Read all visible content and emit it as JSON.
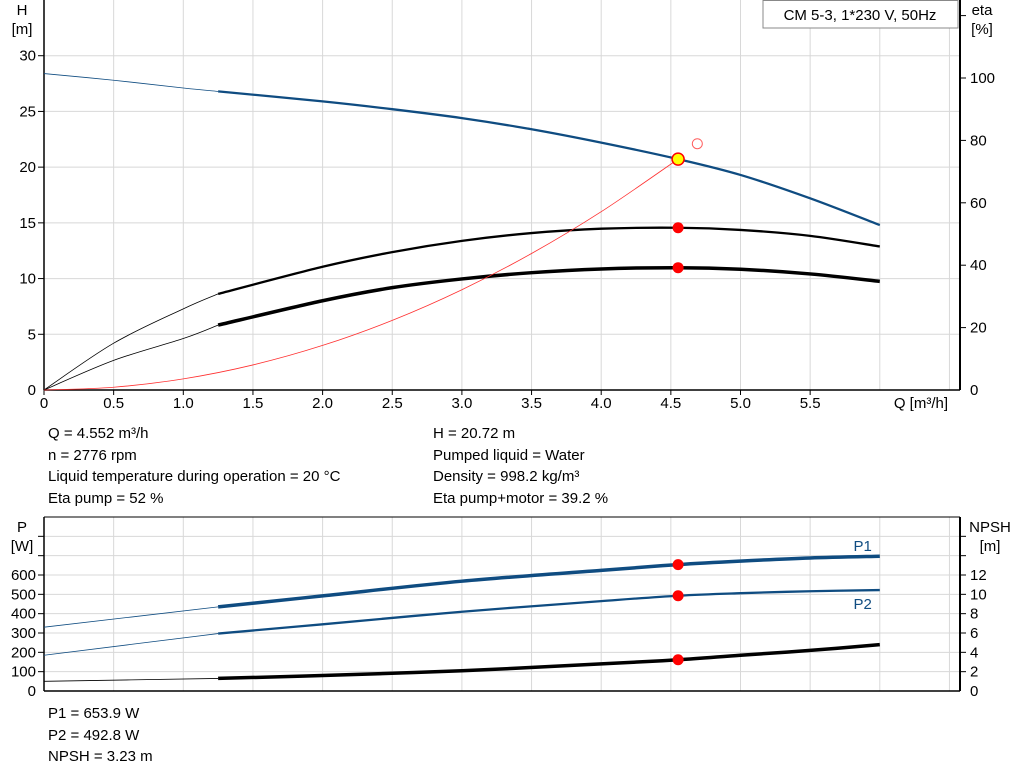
{
  "chart_data": [
    {
      "type": "line",
      "title": "CM 5-3, 1*230 V, 50Hz",
      "xlabel": "Q [m³/h]",
      "ylabel_left": [
        "H",
        "[m]"
      ],
      "ylabel_right": [
        "eta",
        "[%]"
      ],
      "xlim": [
        0,
        6.5
      ],
      "ylim_left": [
        0,
        35
      ],
      "ylim_right": [
        0,
        125
      ],
      "x_ticks": [
        "0",
        "0.5",
        "1.0",
        "1.5",
        "2.0",
        "2.5",
        "3.0",
        "3.5",
        "4.0",
        "4.5",
        "5.0",
        "5.5"
      ],
      "y_ticks_left": [
        "0",
        "5",
        "10",
        "15",
        "20",
        "25",
        "30"
      ],
      "y_ticks_right": [
        "0",
        "20",
        "40",
        "60",
        "80",
        "100"
      ],
      "grid": true,
      "thin_until_q": 1.25,
      "series": [
        {
          "axis": "left",
          "color": "#0f4c81",
          "x": [
            0,
            0.5,
            1.0,
            1.25,
            2.0,
            2.5,
            3.0,
            3.5,
            4.0,
            4.552,
            5.0,
            5.5,
            6.0
          ],
          "y": [
            28.4,
            27.8,
            27.1,
            26.8,
            25.9,
            25.2,
            24.4,
            23.4,
            22.2,
            20.72,
            19.3,
            17.2,
            14.8
          ]
        },
        {
          "axis": "right",
          "color": "#000000",
          "x": [
            0,
            0.5,
            1.0,
            1.25,
            2.0,
            2.5,
            3.0,
            3.5,
            4.0,
            4.552,
            5.0,
            5.5,
            6.0
          ],
          "y": [
            0,
            15,
            26,
            30.8,
            39.5,
            44.2,
            47.8,
            50.3,
            51.7,
            52,
            51.3,
            49.4,
            46
          ]
        },
        {
          "axis": "right",
          "color": "#000000",
          "thick": true,
          "x": [
            0,
            0.5,
            1.0,
            1.25,
            2.0,
            2.5,
            3.0,
            3.5,
            4.0,
            4.552,
            5.0,
            5.5,
            6.0
          ],
          "y": [
            0,
            9.5,
            16.5,
            20.8,
            28.6,
            32.8,
            35.6,
            37.6,
            38.8,
            39.2,
            38.7,
            37.2,
            34.8
          ]
        },
        {
          "axis": "left",
          "color": "#ff3030",
          "system_curve": true,
          "x": [
            0,
            0.5,
            1.0,
            1.5,
            2.0,
            2.5,
            3.0,
            3.5,
            4.0,
            4.552
          ],
          "y": [
            0,
            0.25,
            1.0,
            2.25,
            4.0,
            6.25,
            9.0,
            12.25,
            16.0,
            20.72
          ]
        }
      ],
      "duty_point": {
        "q": 4.552,
        "h": 20.72,
        "eta_pump": 52,
        "eta_total": 39.2
      },
      "requested_point": {
        "q": 4.69,
        "h": 22.1
      }
    },
    {
      "type": "line",
      "ylabel_left": [
        "P",
        "[W]"
      ],
      "ylabel_right": [
        "NPSH",
        "[m]"
      ],
      "xlim": [
        0,
        6.5
      ],
      "ylim_left": [
        0,
        900
      ],
      "ylim_right": [
        0,
        18
      ],
      "y_ticks_left": [
        "0",
        "100",
        "200",
        "300",
        "400",
        "500",
        "600"
      ],
      "y_ticks_right": [
        "0",
        "2",
        "4",
        "6",
        "8",
        "10",
        "12"
      ],
      "grid": true,
      "thin_until_q": 1.25,
      "series": [
        {
          "name": "P1",
          "axis": "left",
          "color": "#0f4c81",
          "thick": true,
          "x": [
            0,
            1.25,
            2.0,
            3.0,
            4.0,
            4.552,
            5.0,
            5.5,
            6.0
          ],
          "y": [
            330,
            435,
            492,
            568,
            624,
            653.9,
            672,
            688,
            697
          ]
        },
        {
          "name": "P2",
          "axis": "left",
          "color": "#0f4c81",
          "x": [
            0,
            1.25,
            2.0,
            3.0,
            4.0,
            4.552,
            5.0,
            5.5,
            6.0
          ],
          "y": [
            185,
            297,
            345,
            410,
            465,
            492.8,
            506,
            516,
            522
          ]
        },
        {
          "axis": "right",
          "color": "#000000",
          "thick": true,
          "x": [
            0,
            1.25,
            2.0,
            3.0,
            4.0,
            4.552,
            5.0,
            5.5,
            6.0
          ],
          "y": [
            1.0,
            1.3,
            1.6,
            2.1,
            2.8,
            3.23,
            3.7,
            4.2,
            4.8
          ]
        }
      ],
      "duty_point": {
        "q": 4.552,
        "p1": 653.9,
        "p2": 492.8,
        "npsh": 3.23
      }
    }
  ],
  "info_top_left": [
    "Q = 4.552 m³/h",
    "n = 2776 rpm",
    "Liquid temperature during operation = 20 °C",
    "Eta pump = 52 %"
  ],
  "info_top_right": [
    "H = 20.72 m",
    "Pumped liquid = Water",
    "Density = 998.2 kg/m³",
    "Eta pump+motor = 39.2 %"
  ],
  "info_bottom": [
    "P1 = 653.9 W",
    "P2 = 492.8 W",
    "NPSH = 3.23 m"
  ]
}
